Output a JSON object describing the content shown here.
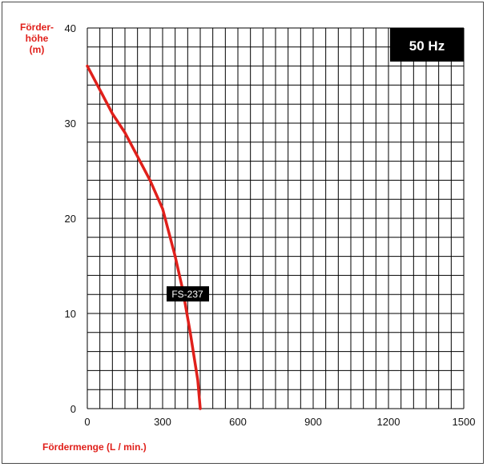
{
  "chart_data": {
    "type": "line",
    "title": "",
    "ylabel_lines": [
      "Förder-",
      "höhe",
      "(m)"
    ],
    "xlabel": "Fördermenge (L / min.)",
    "xlim": [
      0,
      1500
    ],
    "ylim": [
      0,
      40
    ],
    "x_ticks": [
      "0",
      "300",
      "600",
      "900",
      "1200",
      "1500"
    ],
    "y_ticks": [
      "0",
      "10",
      "20",
      "30",
      "40"
    ],
    "grid": true,
    "frequency_badge": "50 Hz",
    "series": [
      {
        "name": "FS-237",
        "color": "#e0201b",
        "x": [
          0,
          50,
          100,
          150,
          200,
          250,
          300,
          350,
          380,
          410,
          440,
          450
        ],
        "y": [
          36,
          33.5,
          31,
          29,
          26.5,
          24,
          21,
          16,
          12.5,
          8,
          3,
          0
        ]
      }
    ]
  },
  "colors": {
    "axis_title": "#e0201b",
    "grid": "#000000",
    "badge_bg": "#000000"
  }
}
